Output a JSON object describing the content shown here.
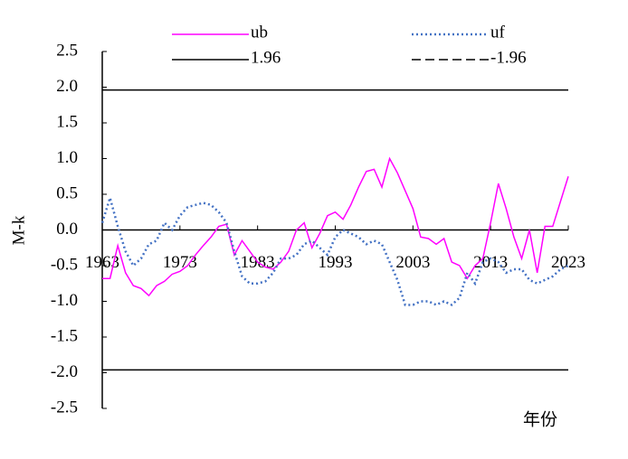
{
  "chart_data": {
    "type": "line",
    "y_label": "M-k",
    "x_label": "年份",
    "x": [
      1963,
      1964,
      1965,
      1966,
      1967,
      1968,
      1969,
      1970,
      1971,
      1972,
      1973,
      1974,
      1975,
      1976,
      1977,
      1978,
      1979,
      1980,
      1981,
      1982,
      1983,
      1984,
      1985,
      1986,
      1987,
      1988,
      1989,
      1990,
      1991,
      1992,
      1993,
      1994,
      1995,
      1996,
      1997,
      1998,
      1999,
      2000,
      2001,
      2002,
      2003,
      2004,
      2005,
      2006,
      2007,
      2008,
      2009,
      2010,
      2011,
      2012,
      2013,
      2014,
      2015,
      2016,
      2017,
      2018,
      2019,
      2020,
      2021,
      2022,
      2023
    ],
    "series": [
      {
        "name": "ub",
        "color": "#ff00ff",
        "dash": "solid",
        "values": [
          -0.68,
          -0.68,
          -0.22,
          -0.6,
          -0.78,
          -0.82,
          -0.92,
          -0.78,
          -0.72,
          -0.62,
          -0.58,
          -0.5,
          -0.35,
          -0.22,
          -0.1,
          0.05,
          0.08,
          -0.35,
          -0.15,
          -0.3,
          -0.45,
          -0.52,
          -0.55,
          -0.45,
          -0.3,
          0.0,
          0.1,
          -0.25,
          -0.05,
          0.2,
          0.25,
          0.15,
          0.35,
          0.6,
          0.82,
          0.85,
          0.6,
          1.0,
          0.8,
          0.55,
          0.3,
          -0.1,
          -0.12,
          -0.2,
          -0.12,
          -0.45,
          -0.5,
          -0.68,
          -0.5,
          -0.4,
          0.1,
          0.65,
          0.3,
          -0.1,
          -0.4,
          0.0,
          -0.6,
          0.05,
          0.05,
          0.4,
          0.75
        ]
      },
      {
        "name": "uf",
        "color": "#4472c4",
        "dash": "dotted",
        "values": [
          0.1,
          0.45,
          0.05,
          -0.3,
          -0.5,
          -0.4,
          -0.2,
          -0.15,
          0.1,
          0.0,
          0.2,
          0.32,
          0.35,
          0.38,
          0.35,
          0.25,
          0.1,
          -0.3,
          -0.65,
          -0.75,
          -0.75,
          -0.72,
          -0.6,
          -0.4,
          -0.4,
          -0.35,
          -0.2,
          -0.15,
          -0.25,
          -0.35,
          -0.1,
          0.0,
          -0.05,
          -0.1,
          -0.2,
          -0.15,
          -0.2,
          -0.45,
          -0.7,
          -1.05,
          -1.05,
          -1.0,
          -1.0,
          -1.05,
          -1.0,
          -1.05,
          -0.95,
          -0.6,
          -0.75,
          -0.45,
          -0.4,
          -0.45,
          -0.6,
          -0.55,
          -0.55,
          -0.7,
          -0.75,
          -0.7,
          -0.65,
          -0.55,
          -0.5
        ]
      }
    ],
    "reference_lines": [
      {
        "name": "1.96",
        "value": 1.96,
        "color": "#000000",
        "line_style": "solid",
        "legend_style": "solid"
      },
      {
        "name": "-1.96",
        "value": -1.96,
        "color": "#000000",
        "line_style": "solid",
        "legend_style": "dashed"
      }
    ],
    "xlim": [
      1963,
      2023
    ],
    "xticks": [
      1963,
      1973,
      1983,
      1993,
      2003,
      2013,
      2023
    ],
    "ylim": [
      -2.5,
      2.5
    ],
    "yticks": [
      {
        "value": -2.5,
        "label": "-2.5"
      },
      {
        "value": -2,
        "label": "-2.0"
      },
      -1.5,
      {
        "value": -1,
        "label": "-1.0"
      },
      -0.5,
      {
        "value": 0,
        "label": "0.0"
      },
      0.5,
      {
        "value": 1,
        "label": "1.0"
      },
      1.5,
      {
        "value": 2,
        "label": "2.0"
      },
      2.5
    ]
  }
}
